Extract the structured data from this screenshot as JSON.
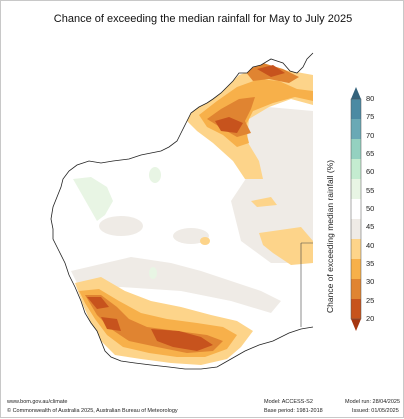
{
  "title": "Chance of exceeding the median rainfall for May to July 2025",
  "colorbar": {
    "label": "Chance of exceeding median rainfall (%)",
    "ticks": [
      "80",
      "75",
      "70",
      "65",
      "60",
      "55",
      "50",
      "45",
      "40",
      "35",
      "30",
      "25",
      "20"
    ],
    "colors": [
      "#34637c",
      "#4b8aa3",
      "#6aa9b5",
      "#94d1c0",
      "#c4ecd0",
      "#e8f5e4",
      "#ffffff",
      "#efebe6",
      "#fdd48a",
      "#f7b04a",
      "#e08431",
      "#c7531d",
      "#a63610"
    ]
  },
  "footer": {
    "left1": "www.bom.gov.au/climate",
    "left2": "© Commonwealth of Australia 2025, Australian Bureau of Meteorology",
    "model": "Model: ACCESS-S2",
    "base": "Base period: 1981-2018",
    "run": "Model run: 28/04/2025",
    "issued": "Issued: 01/05/2025"
  }
}
